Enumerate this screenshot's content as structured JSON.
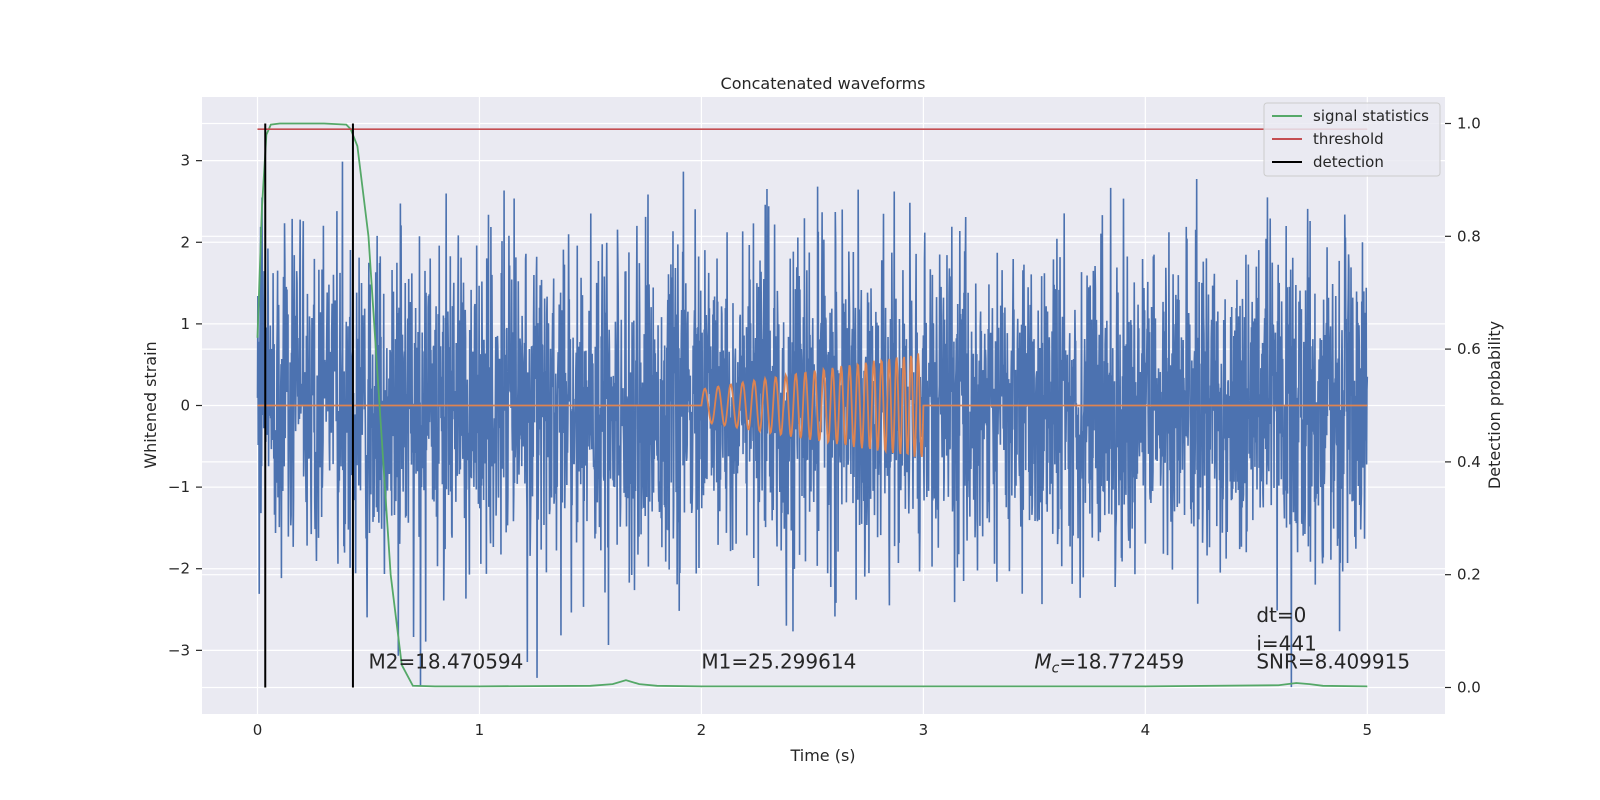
{
  "chart_data": {
    "type": "line",
    "title": "Concatenated waveforms",
    "xlabel": "Time (s)",
    "ylabel_left": "Whitened strain",
    "ylabel_right": "Detection probability",
    "xlim": [
      -0.25,
      5.35
    ],
    "ylim_left": [
      -3.78,
      3.78
    ],
    "ylim_right": [
      -0.047,
      1.047
    ],
    "x_ticks": [
      0,
      1,
      2,
      3,
      4,
      5
    ],
    "x_tick_labels": [
      "0",
      "1",
      "2",
      "3",
      "4",
      "5"
    ],
    "y_left_ticks": [
      -3,
      -2,
      -1,
      0,
      1,
      2,
      3
    ],
    "y_left_tick_labels": [
      "−3",
      "−2",
      "−1",
      "0",
      "1",
      "2",
      "3"
    ],
    "y_right_ticks": [
      0.0,
      0.2,
      0.4,
      0.6,
      0.8,
      1.0
    ],
    "y_right_tick_labels": [
      "0.0",
      "0.2",
      "0.4",
      "0.6",
      "0.8",
      "1.0"
    ],
    "grid": true,
    "legend_position": "top-right",
    "colors": {
      "background": "#eaeaf2",
      "grid": "#ffffff",
      "strain": "#4c72b0",
      "waveform": "#dd8452",
      "statistics": "#55a868",
      "threshold": "#c44e52",
      "detection": "#000000"
    },
    "series": [
      {
        "name": "",
        "axis": "left",
        "description_kind": "whitened noisy strain, 0 to 5 s, amplitude roughly within ±3.4",
        "x_range": [
          0,
          5
        ],
        "amplitude_max": 3.45
      },
      {
        "name": "",
        "axis": "left",
        "description_kind": "injected chirp waveform",
        "x_range": [
          0,
          5
        ],
        "chirp_start": 2.0,
        "chirp_end": 3.0,
        "amplitude_start": 0.2,
        "amplitude_end": 0.65
      },
      {
        "name": "signal statistics",
        "axis": "right",
        "x": [
          0.0,
          0.02,
          0.04,
          0.06,
          0.1,
          0.2,
          0.3,
          0.4,
          0.42,
          0.45,
          0.5,
          0.55,
          0.6,
          0.65,
          0.7,
          0.8,
          1.0,
          1.5,
          1.6,
          1.66,
          1.72,
          1.8,
          2.0,
          3.0,
          4.0,
          4.6,
          4.68,
          4.74,
          4.8,
          5.0
        ],
        "y": [
          0.62,
          0.85,
          0.98,
          0.998,
          1.0,
          1.0,
          1.0,
          0.998,
          0.99,
          0.96,
          0.8,
          0.5,
          0.2,
          0.04,
          0.003,
          0.002,
          0.002,
          0.003,
          0.006,
          0.013,
          0.006,
          0.003,
          0.002,
          0.002,
          0.002,
          0.004,
          0.008,
          0.006,
          0.003,
          0.002
        ]
      },
      {
        "name": "threshold",
        "axis": "right",
        "x": [
          0,
          5
        ],
        "y": [
          0.99,
          0.99
        ]
      },
      {
        "name": "detection",
        "axis": "right",
        "vlines": [
          0.035,
          0.43
        ],
        "y_range": [
          0.0,
          1.0
        ]
      }
    ],
    "legend": [
      "signal statistics",
      "threshold",
      "detection"
    ],
    "annotations": [
      {
        "text": "M2=18.470594",
        "x": 0.5,
        "y": -3.22
      },
      {
        "text": "M1=25.299614",
        "x": 2.0,
        "y": -3.22
      },
      {
        "text_italic": "M",
        "text_sub": "c",
        "text": "=18.772459",
        "x": 3.5,
        "y": -3.22
      },
      {
        "text": "dt=0",
        "x": 4.5,
        "y": -2.65
      },
      {
        "text": "i=441",
        "x": 4.5,
        "y": -3.0
      },
      {
        "text": "SNR=8.409915",
        "x": 4.5,
        "y": -3.22
      }
    ]
  }
}
